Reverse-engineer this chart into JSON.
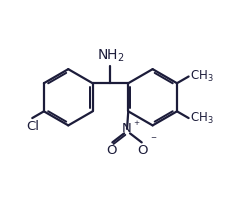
{
  "bg_color": "#ffffff",
  "line_color": "#1c1c3a",
  "bond_lw": 1.6,
  "font_size": 8.5,
  "fig_width": 2.49,
  "fig_height": 1.97,
  "dpi": 100,
  "xlim": [
    0,
    10
  ],
  "ylim": [
    0,
    8
  ]
}
